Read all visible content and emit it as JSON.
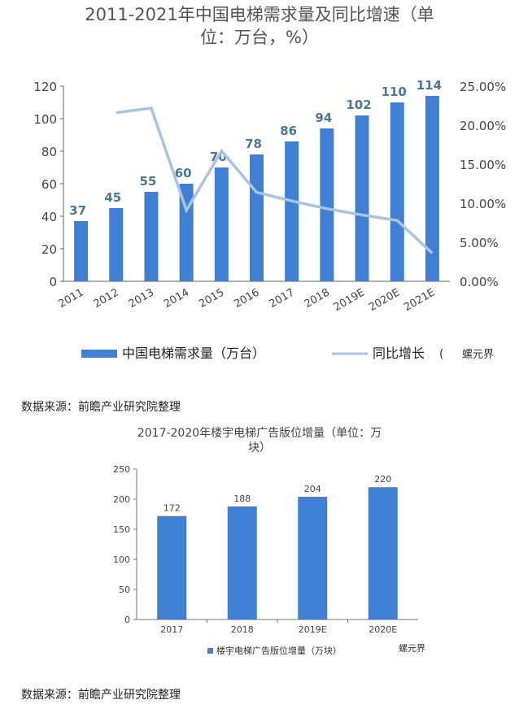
{
  "chart_data": [
    {
      "type": "bar",
      "title": "2011-2021年中国电梯需求量及同比增速（单位：万台，%）",
      "title_lines": [
        "2011-2021年中国电梯需求量及同比增速（单",
        "位：万台，%）"
      ],
      "categories": [
        "2011",
        "2012",
        "2013",
        "2014",
        "2015",
        "2016",
        "2017",
        "2018",
        "2019E",
        "2020E",
        "2021E"
      ],
      "series": [
        {
          "name": "中国电梯需求量（万台）",
          "type": "bar",
          "axis": "left",
          "values": [
            37,
            45,
            55,
            60,
            70,
            78,
            86,
            94,
            102,
            110,
            114
          ],
          "color": "#3f7fd4"
        },
        {
          "name": "同比增长",
          "type": "line",
          "axis": "right",
          "values": [
            null,
            21.6,
            22.2,
            9.1,
            16.7,
            11.4,
            10.3,
            9.3,
            8.5,
            7.8,
            3.6
          ],
          "color": "#a9c3e3"
        }
      ],
      "ylim": [
        0,
        120
      ],
      "yticks": [
        "0",
        "20",
        "40",
        "60",
        "80",
        "100",
        "120"
      ],
      "y2lim": [
        0,
        25
      ],
      "y2ticks": [
        "0.00%",
        "5.00%",
        "10.00%",
        "15.00%",
        "20.00%",
        "25.00%"
      ],
      "legend_position": "bottom",
      "grid": false
    },
    {
      "type": "bar",
      "title": "2017-2020年楼宇电梯广告版位增量（单位：万块）",
      "title_lines": [
        "2017-2020年楼宇电梯广告版位增量（单位：万",
        "块）"
      ],
      "categories": [
        "2017",
        "2018",
        "2019E",
        "2020E"
      ],
      "series": [
        {
          "name": "楼宇电梯广告版位增量（万块）",
          "values": [
            172,
            188,
            204,
            220
          ],
          "color": "#3f7fd4"
        }
      ],
      "ylim": [
        0,
        250
      ],
      "yticks": [
        "0",
        "50",
        "100",
        "150",
        "200",
        "250"
      ],
      "legend_position": "bottom",
      "grid": false
    }
  ],
  "source_text_1": "数据来源：前瞻产业研究院整理",
  "source_text_2": "数据来源：前瞻产业研究院整理",
  "watermark_1": "(",
  "watermark_2": "螺元界",
  "watermark_3": "螺元界"
}
